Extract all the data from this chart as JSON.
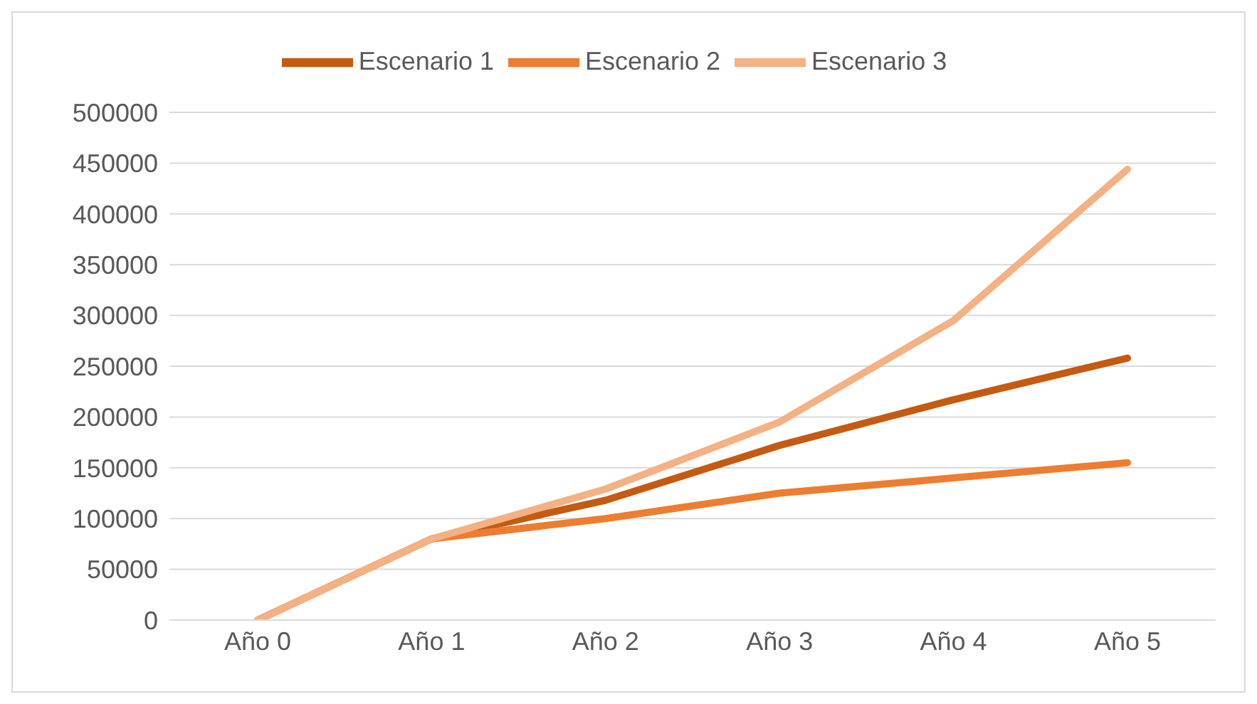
{
  "chart_data": {
    "type": "line",
    "categories": [
      "Año 0",
      "Año 1",
      "Año 2",
      "Año 3",
      "Año 4",
      "Año 5"
    ],
    "series": [
      {
        "name": "Escenario 1",
        "color": "#c55a11",
        "values": [
          0,
          80000,
          118000,
          172000,
          217000,
          258000
        ]
      },
      {
        "name": "Escenario 2",
        "color": "#ed7d31",
        "values": [
          0,
          80000,
          100000,
          125000,
          140000,
          155000
        ]
      },
      {
        "name": "Escenario 3",
        "color": "#f4b183",
        "values": [
          0,
          80000,
          129000,
          195000,
          295000,
          444000
        ]
      }
    ],
    "ylim": [
      0,
      500000
    ],
    "yticks": [
      0,
      50000,
      100000,
      150000,
      200000,
      250000,
      300000,
      350000,
      400000,
      450000,
      500000
    ],
    "grid": "y",
    "legend": "top",
    "marker": "none",
    "line_style": "solid"
  }
}
